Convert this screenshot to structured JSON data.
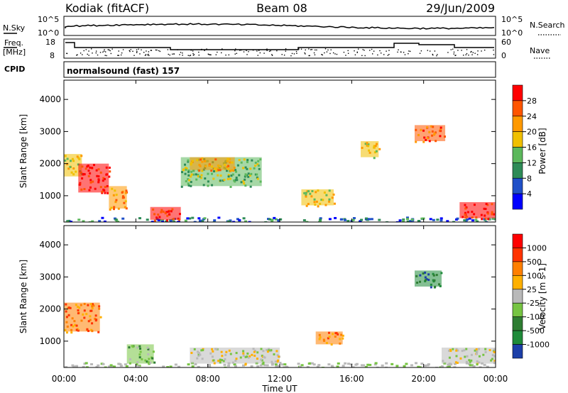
{
  "header": {
    "station": "Kodiak (fitACF)",
    "beam": "Beam 08",
    "date": "29/Jun/2009"
  },
  "strips": {
    "noise": {
      "left_label": "N.Sky",
      "right_label": "N.Search",
      "left_ticks": [
        "10^5",
        "10^0"
      ],
      "right_ticks": [
        "10^5",
        "10^0"
      ]
    },
    "freq": {
      "left_label_1": "Freq.",
      "left_label_2": "[MHz]",
      "right_label": "Nave",
      "left_ticks": [
        "18",
        "8"
      ],
      "right_ticks": [
        "60",
        "0"
      ]
    },
    "cpid": {
      "left_label": "CPID",
      "text": "normalsound (fast) 157"
    }
  },
  "colors": {
    "power": [
      "#0000ff",
      "#2050c8",
      "#2e8b57",
      "#5cb85c",
      "#f0c000",
      "#ff9900",
      "#ff5500",
      "#ff0000"
    ],
    "velocity": [
      "#1c3fa8",
      "#1f8b3a",
      "#2e7d32",
      "#76c442",
      "#b9b9b9",
      "#ffb000",
      "#ff7f00",
      "#ff3300",
      "#ff0000"
    ],
    "ground": "#b9b9b9"
  },
  "chart_data": [
    {
      "type": "heatmap",
      "panel": "power",
      "x": [
        "00:00",
        "04:00",
        "08:00",
        "12:00",
        "16:00",
        "20:00",
        "00:00"
      ],
      "xlim": [
        0,
        24
      ],
      "ylabel": "Slant Range [km]",
      "yticks": [
        "4000",
        "3000",
        "2000",
        "1000"
      ],
      "ylim": [
        180,
        4600
      ],
      "colorbar": {
        "label": "Power [dB]",
        "ticks": [
          "28",
          "24",
          "20",
          "16",
          "12",
          "8",
          "4"
        ],
        "range": [
          0,
          30
        ]
      },
      "regions": [
        {
          "t0": 0.0,
          "t1": 1.0,
          "r0": 1600,
          "r1": 2300,
          "level": 4
        },
        {
          "t0": 0.8,
          "t1": 2.5,
          "r0": 1100,
          "r1": 2000,
          "level": 7
        },
        {
          "t0": 2.5,
          "t1": 3.5,
          "r0": 600,
          "r1": 1300,
          "level": 5
        },
        {
          "t0": 4.8,
          "t1": 6.5,
          "r0": 250,
          "r1": 650,
          "level": 7
        },
        {
          "t0": 6.5,
          "t1": 11.0,
          "r0": 1300,
          "r1": 2200,
          "level": 3
        },
        {
          "t0": 7.0,
          "t1": 9.5,
          "r0": 1800,
          "r1": 2200,
          "level": 5
        },
        {
          "t0": 13.2,
          "t1": 15.0,
          "r0": 700,
          "r1": 1200,
          "level": 4
        },
        {
          "t0": 16.5,
          "t1": 17.5,
          "r0": 2200,
          "r1": 2700,
          "level": 4
        },
        {
          "t0": 19.5,
          "t1": 21.2,
          "r0": 2700,
          "r1": 3200,
          "level": 6
        },
        {
          "t0": 22.0,
          "t1": 24.0,
          "r0": 300,
          "r1": 800,
          "level": 7
        }
      ]
    },
    {
      "type": "heatmap",
      "panel": "velocity",
      "x": [
        "00:00",
        "04:00",
        "08:00",
        "12:00",
        "16:00",
        "20:00",
        "00:00"
      ],
      "xlim": [
        0,
        24
      ],
      "xlabel": "Time UT",
      "ylabel": "Slant Range [km]",
      "yticks": [
        "4000",
        "3000",
        "2000",
        "1000"
      ],
      "ylim": [
        180,
        4600
      ],
      "colorbar": {
        "label": "Velocity [m s-1]",
        "ticks": [
          "1000",
          "500",
          "100",
          "25",
          "-25",
          "-100",
          "-500",
          "-1000"
        ],
        "range": [
          -1500,
          1500
        ]
      },
      "regions": [
        {
          "t0": 0.0,
          "t1": 2.0,
          "r0": 1300,
          "r1": 2200,
          "level": 6
        },
        {
          "t0": 3.5,
          "t1": 5.0,
          "r0": 300,
          "r1": 900,
          "level": 3
        },
        {
          "t0": 7.0,
          "t1": 12.0,
          "r0": 300,
          "r1": 800,
          "level": 4
        },
        {
          "t0": 14.0,
          "t1": 15.5,
          "r0": 900,
          "r1": 1300,
          "level": 6
        },
        {
          "t0": 19.5,
          "t1": 21.0,
          "r0": 2700,
          "r1": 3200,
          "level": 1
        },
        {
          "t0": 21.0,
          "t1": 24.0,
          "r0": 300,
          "r1": 800,
          "level": 4
        }
      ]
    }
  ]
}
